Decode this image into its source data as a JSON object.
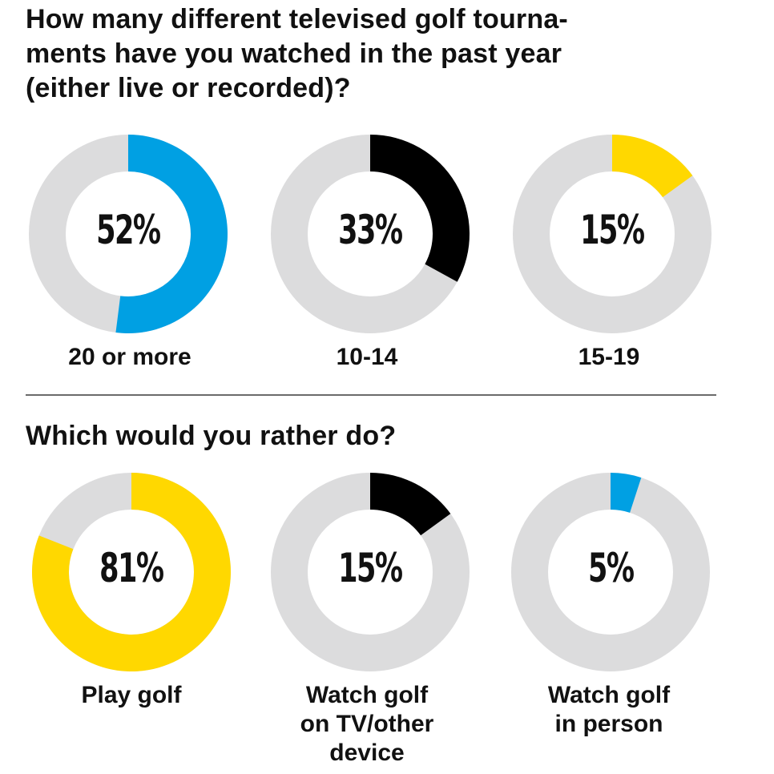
{
  "q1": {
    "title": "How many different televised golf tourna-\nments have you watched in the past year\n(either live or recorded)?"
  },
  "q2": {
    "title": "Which would you rather do?"
  },
  "chart_data": [
    {
      "type": "pie",
      "title": "How many different televised golf tournaments have you watched in the past year (either live or recorded)?",
      "categories": [
        "20 or more",
        "10-14",
        "15-19"
      ],
      "values": [
        52,
        33,
        15
      ],
      "colors": [
        "#00a0e3",
        "#000000",
        "#ffd800"
      ],
      "track_color": "#dcdcdd"
    },
    {
      "type": "pie",
      "title": "Which would you rather do?",
      "categories": [
        "Play golf",
        "Watch golf on TV/other device",
        "Watch golf in person"
      ],
      "values": [
        81,
        15,
        5
      ],
      "colors": [
        "#ffd800",
        "#000000",
        "#00a0e3"
      ],
      "track_color": "#dcdcdd"
    }
  ],
  "donuts": [
    {
      "pct_label": "52%",
      "label": "20 or more",
      "value": 52,
      "color": "#00a0e3"
    },
    {
      "pct_label": "33%",
      "label": "10-14",
      "value": 33,
      "color": "#000000"
    },
    {
      "pct_label": "15%",
      "label": "15-19",
      "value": 15,
      "color": "#ffd800"
    },
    {
      "pct_label": "81%",
      "label": "Play golf",
      "value": 81,
      "color": "#ffd800"
    },
    {
      "pct_label": "15%",
      "label": "Watch golf\non TV/other\ndevice",
      "value": 15,
      "color": "#000000"
    },
    {
      "pct_label": "5%",
      "label": "Watch golf\nin person",
      "value": 5,
      "color": "#00a0e3"
    }
  ]
}
